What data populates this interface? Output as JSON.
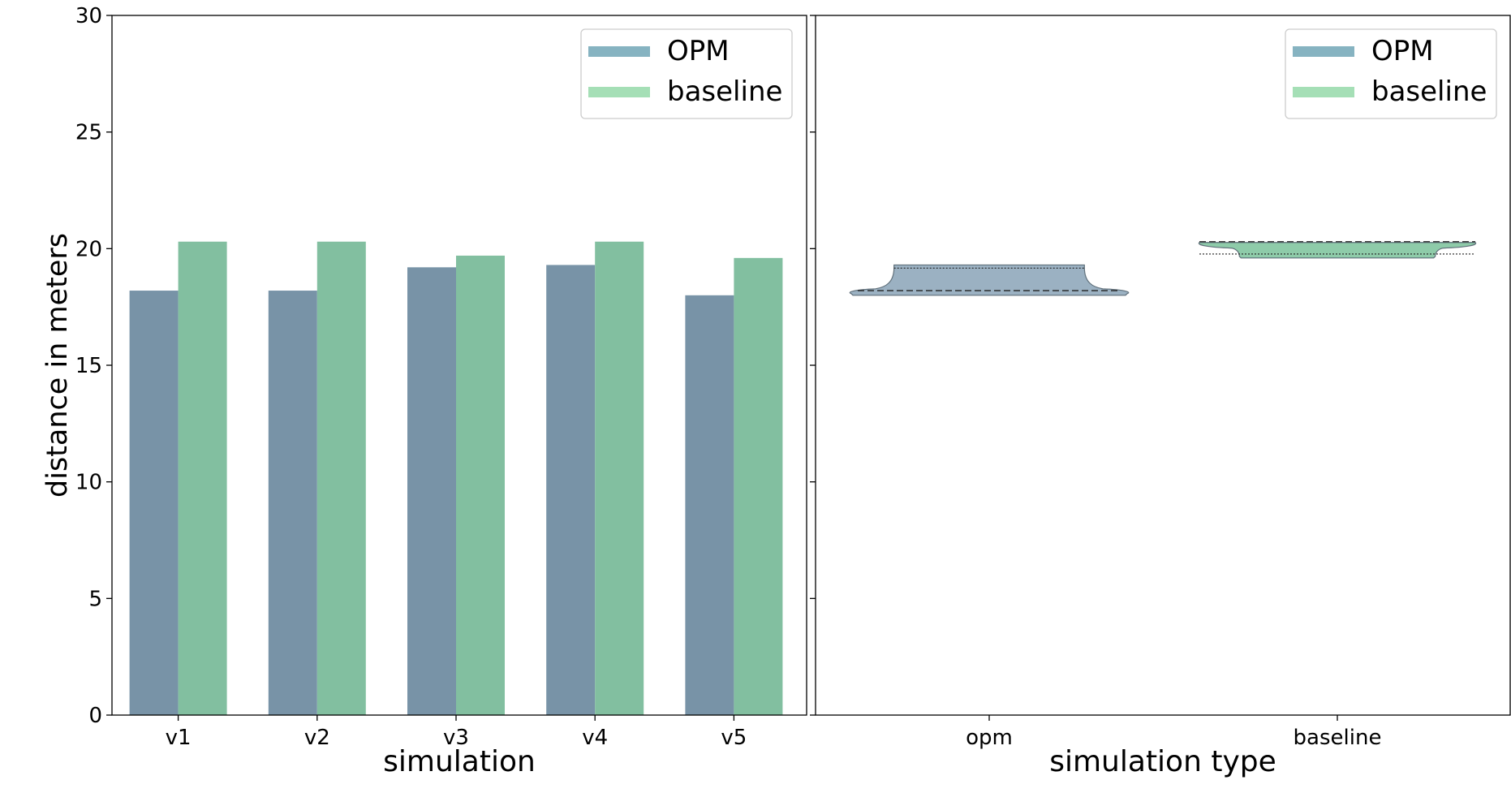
{
  "chart_data": [
    {
      "type": "bar",
      "xlabel": "simulation",
      "ylabel": "distance in meters",
      "categories": [
        "v1",
        "v2",
        "v3",
        "v4",
        "v5"
      ],
      "ylim": [
        0,
        30
      ],
      "yticks": [
        "0",
        "5",
        "10",
        "15",
        "20",
        "25",
        "30"
      ],
      "grid": false,
      "legend_placement": "top-right",
      "series": [
        {
          "name": "OPM",
          "color": "#7893a7",
          "values": [
            18.2,
            18.2,
            19.2,
            19.3,
            18.0
          ]
        },
        {
          "name": "baseline",
          "color": "#82bfa0",
          "values": [
            20.3,
            20.3,
            19.7,
            20.3,
            19.6
          ]
        }
      ]
    },
    {
      "type": "violin",
      "xlabel": "simulation type",
      "ylabel": "",
      "categories": [
        "opm",
        "baseline"
      ],
      "ylim": [
        0,
        30
      ],
      "grid": false,
      "legend_placement": "top-right",
      "series": [
        {
          "name": "OPM",
          "color": "#9bb1c2",
          "min": 18.0,
          "q1": 18.2,
          "median": 18.2,
          "q3": 19.2,
          "max": 19.3
        },
        {
          "name": "baseline",
          "color": "#8ecba9",
          "min": 19.6,
          "q1": 19.7,
          "median": 20.3,
          "q3": 20.3,
          "max": 20.3
        }
      ]
    }
  ]
}
